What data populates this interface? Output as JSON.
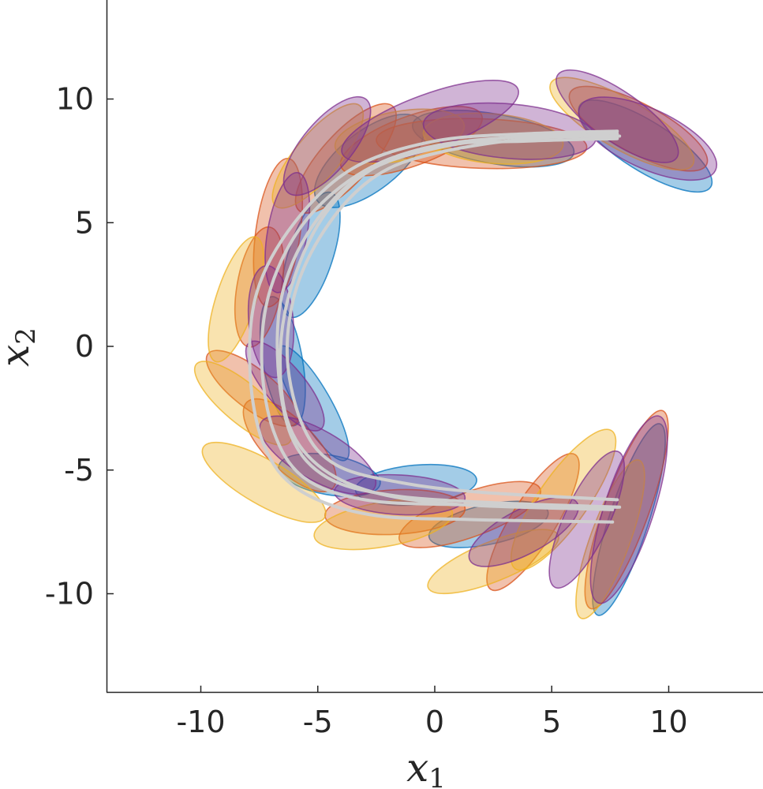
{
  "chart_data": {
    "type": "scatter",
    "title": "",
    "xlabel": "x",
    "xlabel_sub": "1",
    "ylabel": "x",
    "ylabel_sub": "2",
    "xlim": [
      -14,
      14
    ],
    "ylim": [
      -14,
      14
    ],
    "xticks": [
      -10,
      -5,
      0,
      5,
      10
    ],
    "yticks": [
      -10,
      -5,
      0,
      5,
      10
    ],
    "xtick_labels": [
      "-10",
      "-5",
      "0",
      "5",
      "10"
    ],
    "ytick_labels": [
      "-10",
      "-5",
      "0",
      "5",
      "10"
    ],
    "grid": false,
    "colors": {
      "blue": "#0072bd",
      "orange": "#d95319",
      "yellow": "#edb120",
      "purple": "#7e2f8e",
      "trajectory": "#cfcfcf",
      "axis": "#262626"
    },
    "ellipses": [
      {
        "color": "blue",
        "cx": 8.3,
        "cy": -7.0,
        "a": 4.3,
        "b": 0.8,
        "angle": 72
      },
      {
        "color": "blue",
        "cx": 9.0,
        "cy": 8.1,
        "a": 3.3,
        "b": 1.0,
        "angle": -32
      },
      {
        "color": "blue",
        "cx": 2.5,
        "cy": 8.4,
        "a": 3.5,
        "b": 1.0,
        "angle": -10
      },
      {
        "color": "blue",
        "cx": -2.8,
        "cy": 7.5,
        "a": 2.8,
        "b": 1.2,
        "angle": 38
      },
      {
        "color": "blue",
        "cx": -5.3,
        "cy": 3.7,
        "a": 2.8,
        "b": 0.9,
        "angle": 72
      },
      {
        "color": "blue",
        "cx": -6.5,
        "cy": -0.6,
        "a": 2.8,
        "b": 0.8,
        "angle": 100
      },
      {
        "color": "blue",
        "cx": -5.2,
        "cy": -2.3,
        "a": 2.8,
        "b": 0.7,
        "angle": -60
      },
      {
        "color": "blue",
        "cx": -4.5,
        "cy": -5.2,
        "a": 2.2,
        "b": 0.8,
        "angle": -10
      },
      {
        "color": "blue",
        "cx": -0.8,
        "cy": -5.6,
        "a": 2.6,
        "b": 0.8,
        "angle": 5
      },
      {
        "color": "blue",
        "cx": 2.3,
        "cy": -7.2,
        "a": 2.6,
        "b": 0.8,
        "angle": 12
      },
      {
        "color": "orange",
        "cx": 8.2,
        "cy": -6.6,
        "a": 4.5,
        "b": 0.9,
        "angle": 70
      },
      {
        "color": "orange",
        "cx": 4.2,
        "cy": -7.1,
        "a": 3.4,
        "b": 0.9,
        "angle": 58
      },
      {
        "color": "orange",
        "cx": 1.5,
        "cy": -6.8,
        "a": 3.2,
        "b": 0.9,
        "angle": 20
      },
      {
        "color": "orange",
        "cx": -1.7,
        "cy": -6.7,
        "a": 3.0,
        "b": 0.9,
        "angle": 3
      },
      {
        "color": "orange",
        "cx": -6.2,
        "cy": -4.0,
        "a": 2.6,
        "b": 1.0,
        "angle": -45
      },
      {
        "color": "orange",
        "cx": -7.8,
        "cy": -1.7,
        "a": 2.4,
        "b": 0.8,
        "angle": -38
      },
      {
        "color": "orange",
        "cx": -7.5,
        "cy": 2.4,
        "a": 2.6,
        "b": 0.9,
        "angle": 80
      },
      {
        "color": "orange",
        "cx": -6.7,
        "cy": 4.6,
        "a": 3.2,
        "b": 0.9,
        "angle": 82
      },
      {
        "color": "orange",
        "cx": -3.8,
        "cy": 7.6,
        "a": 3.0,
        "b": 1.0,
        "angle": 48
      },
      {
        "color": "orange",
        "cx": -1.0,
        "cy": 8.3,
        "a": 3.2,
        "b": 1.0,
        "angle": 20
      },
      {
        "color": "orange",
        "cx": 2.0,
        "cy": 8.2,
        "a": 4.5,
        "b": 1.0,
        "angle": -2
      },
      {
        "color": "orange",
        "cx": 8.7,
        "cy": 8.8,
        "a": 3.3,
        "b": 1.0,
        "angle": -28
      },
      {
        "color": "yellow",
        "cx": 7.5,
        "cy": -7.8,
        "a": 3.6,
        "b": 0.8,
        "angle": 70
      },
      {
        "color": "yellow",
        "cx": 5.5,
        "cy": -6.2,
        "a": 3.6,
        "b": 1.0,
        "angle": 55
      },
      {
        "color": "yellow",
        "cx": 2.5,
        "cy": -8.7,
        "a": 3.0,
        "b": 0.8,
        "angle": 22
      },
      {
        "color": "yellow",
        "cx": -2.2,
        "cy": -7.2,
        "a": 3.0,
        "b": 0.9,
        "angle": 10
      },
      {
        "color": "yellow",
        "cx": -7.3,
        "cy": -5.5,
        "a": 3.0,
        "b": 0.9,
        "angle": -30
      },
      {
        "color": "yellow",
        "cx": -8.2,
        "cy": -2.3,
        "a": 2.6,
        "b": 0.8,
        "angle": -40
      },
      {
        "color": "yellow",
        "cx": -8.5,
        "cy": 1.9,
        "a": 2.8,
        "b": 0.8,
        "angle": 72
      },
      {
        "color": "yellow",
        "cx": -5.0,
        "cy": 7.7,
        "a": 2.8,
        "b": 0.9,
        "angle": 50
      },
      {
        "color": "yellow",
        "cx": -1.5,
        "cy": 8.5,
        "a": 2.8,
        "b": 1.0,
        "angle": 10
      },
      {
        "color": "yellow",
        "cx": 2.5,
        "cy": 8.4,
        "a": 3.0,
        "b": 1.0,
        "angle": -5
      },
      {
        "color": "yellow",
        "cx": 8.0,
        "cy": 9.0,
        "a": 3.5,
        "b": 1.0,
        "angle": -30
      },
      {
        "color": "purple",
        "cx": 8.3,
        "cy": -6.6,
        "a": 4.2,
        "b": 1.0,
        "angle": 72
      },
      {
        "color": "purple",
        "cx": 6.5,
        "cy": -7.0,
        "a": 3.2,
        "b": 0.9,
        "angle": 65
      },
      {
        "color": "purple",
        "cx": 3.8,
        "cy": -7.5,
        "a": 2.6,
        "b": 0.9,
        "angle": 28
      },
      {
        "color": "purple",
        "cx": -1.5,
        "cy": -6.0,
        "a": 2.8,
        "b": 0.8,
        "angle": -3
      },
      {
        "color": "purple",
        "cx": -5.0,
        "cy": -4.4,
        "a": 2.8,
        "b": 1.0,
        "angle": -30
      },
      {
        "color": "purple",
        "cx": -6.4,
        "cy": -1.6,
        "a": 2.4,
        "b": 0.8,
        "angle": -50
      },
      {
        "color": "purple",
        "cx": -7.0,
        "cy": 1.0,
        "a": 2.4,
        "b": 0.9,
        "angle": 95
      },
      {
        "color": "purple",
        "cx": -6.3,
        "cy": 4.6,
        "a": 2.6,
        "b": 0.8,
        "angle": 80
      },
      {
        "color": "purple",
        "cx": -4.6,
        "cy": 8.1,
        "a": 2.6,
        "b": 1.0,
        "angle": 50
      },
      {
        "color": "purple",
        "cx": -0.2,
        "cy": 9.1,
        "a": 4.0,
        "b": 1.1,
        "angle": 20
      },
      {
        "color": "purple",
        "cx": 3.2,
        "cy": 8.7,
        "a": 3.7,
        "b": 1.1,
        "angle": -5
      },
      {
        "color": "purple",
        "cx": 7.8,
        "cy": 9.3,
        "a": 3.1,
        "b": 1.0,
        "angle": -35
      },
      {
        "color": "purple",
        "cx": 9.1,
        "cy": 8.4,
        "a": 3.2,
        "b": 1.2,
        "angle": -25
      }
    ],
    "trajectories": [
      [
        [
          7.8,
          8.6
        ],
        [
          4,
          8.5
        ],
        [
          0,
          8.1
        ],
        [
          -3,
          7.1
        ],
        [
          -5.5,
          5.1
        ],
        [
          -7,
          2.4
        ],
        [
          -7.4,
          -0.5
        ],
        [
          -6.9,
          -3.4
        ],
        [
          -5.6,
          -5.3
        ],
        [
          -3,
          -6.2
        ],
        [
          1,
          -6.4
        ],
        [
          7.8,
          -6.5
        ]
      ],
      [
        [
          7.8,
          8.7
        ],
        [
          4,
          8.6
        ],
        [
          0,
          8.3
        ],
        [
          -3.5,
          7.2
        ],
        [
          -6,
          5.0
        ],
        [
          -7.6,
          2.2
        ],
        [
          -7.9,
          -1.0
        ],
        [
          -7.3,
          -4.0
        ],
        [
          -5.8,
          -5.8
        ],
        [
          -2.8,
          -6.8
        ],
        [
          1.5,
          -7.0
        ],
        [
          7.6,
          -7.1
        ]
      ],
      [
        [
          7.7,
          8.5
        ],
        [
          4,
          8.4
        ],
        [
          0,
          7.8
        ],
        [
          -2.5,
          6.9
        ],
        [
          -4.5,
          5.0
        ],
        [
          -5.9,
          2.4
        ],
        [
          -6.3,
          -0.5
        ],
        [
          -5.6,
          -3.3
        ],
        [
          -4.2,
          -4.8
        ],
        [
          -1.5,
          -5.5
        ],
        [
          2,
          -5.9
        ],
        [
          7.8,
          -6.2
        ]
      ],
      [
        [
          7.9,
          8.5
        ],
        [
          4,
          8.5
        ],
        [
          0,
          8.0
        ],
        [
          -3,
          7.0
        ],
        [
          -5.2,
          4.9
        ],
        [
          -6.5,
          2.2
        ],
        [
          -6.7,
          -0.8
        ],
        [
          -6.1,
          -3.7
        ],
        [
          -4.6,
          -5.3
        ],
        [
          -2,
          -6.0
        ],
        [
          2,
          -6.3
        ],
        [
          7.9,
          -6.5
        ]
      ],
      [
        [
          7.8,
          8.4
        ],
        [
          4,
          8.3
        ],
        [
          0,
          8.1
        ],
        [
          -2.8,
          7.1
        ],
        [
          -4.8,
          5.2
        ],
        [
          -6.1,
          2.5
        ],
        [
          -6.6,
          -0.2
        ],
        [
          -6.3,
          -3.0
        ],
        [
          -5.0,
          -4.8
        ],
        [
          -2.6,
          -5.9
        ],
        [
          1.2,
          -6.4
        ],
        [
          7.6,
          -6.6
        ]
      ]
    ]
  }
}
